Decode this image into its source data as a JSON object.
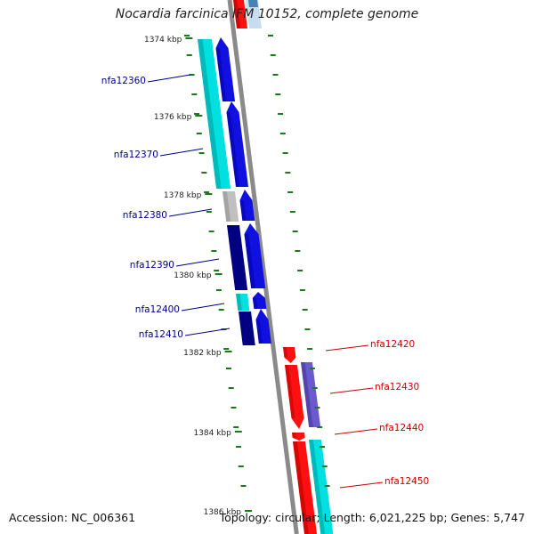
{
  "title": "Nocardia farcinica IFM 10152, complete genome",
  "accession": "Accession: NC_006361",
  "summary": "Topology: circular; Length: 6,021,225 bp; Genes: 5,747",
  "colors": {
    "backbone": "#8a8a8a",
    "tick": "#1a7a1a",
    "left_label": "#00008b",
    "right_label": "#cc0000",
    "cyan": "#00e0e0",
    "blue": "#1010e0",
    "navy": "#000080",
    "gray": "#c0c0c0",
    "red": "#ff1010",
    "violet": "#6a5acd",
    "lightblue": "#c8dcf0",
    "steel": "#4682b4"
  },
  "kbp_labels": [
    "1374 kbp",
    "1376 kbp",
    "1378 kbp",
    "1380 kbp",
    "1382 kbp",
    "1384 kbp",
    "1386 kbp"
  ],
  "left_genes": [
    "nfa12360",
    "nfa12370",
    "nfa12380",
    "nfa12390",
    "nfa12400",
    "nfa12410"
  ],
  "right_genes": [
    "nfa12420",
    "nfa12430",
    "nfa12440",
    "nfa12450"
  ]
}
